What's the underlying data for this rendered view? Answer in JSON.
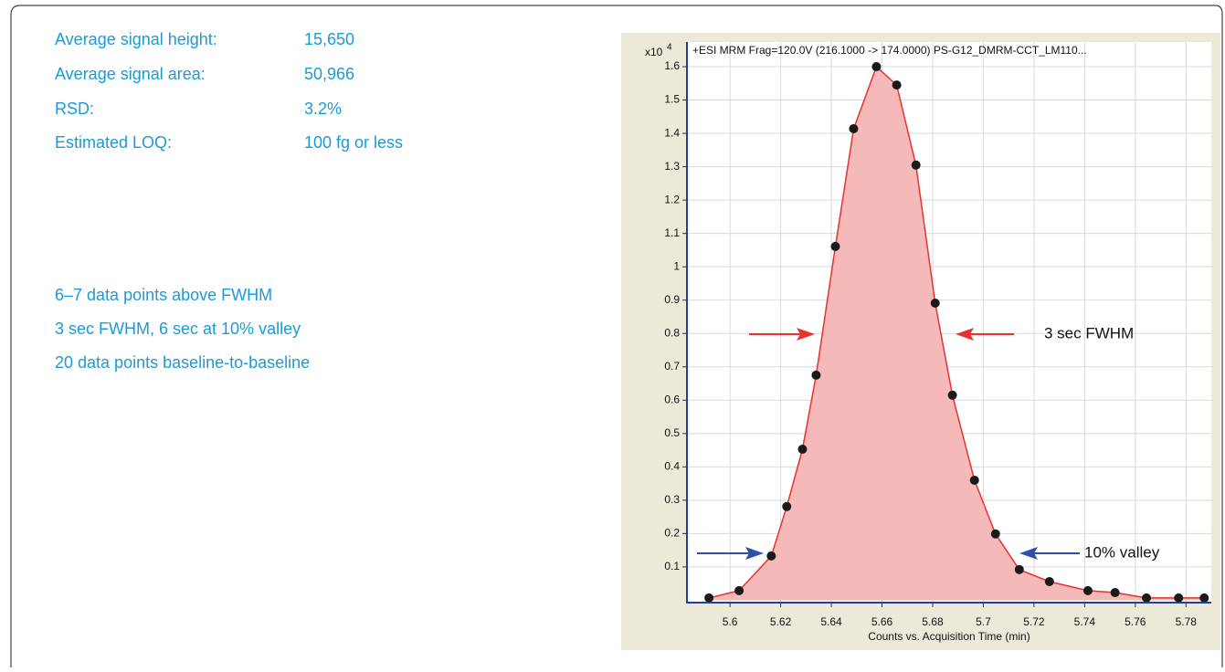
{
  "stats": [
    {
      "label": "Average signal height:",
      "value": "15,650"
    },
    {
      "label": "Average signal area:",
      "value": "50,966"
    },
    {
      "label": "RSD:",
      "value": "3.2%"
    },
    {
      "label": "Estimated LOQ:",
      "value": "100 fg or less"
    }
  ],
  "notes": [
    "6–7 data points above FWHM",
    "3 sec FWHM, 6 sec at 10% valley",
    "20 data points baseline-to-baseline"
  ],
  "chart_data": {
    "type": "line",
    "title": "+ESI  MRM  Frag=120.0V  (216.1000 -> 174.0000)  PS-G12_DMRM-CCT_LM110...",
    "y_scale": {
      "base": "x10",
      "exponent": "4"
    },
    "x_label": "Counts vs. Acquisition Time (min)",
    "annotations": [
      "3 sec FWHM",
      "10% valley"
    ],
    "x": [
      5.5917,
      5.6036,
      5.6163,
      5.6224,
      5.6286,
      5.634,
      5.6416,
      5.6488,
      5.6578,
      5.6658,
      5.6734,
      5.681,
      5.6878,
      5.6965,
      5.7048,
      5.7142,
      5.7261,
      5.7413,
      5.752,
      5.7644,
      5.7771,
      5.7872
    ],
    "values": [
      0.007,
      0.029,
      0.133,
      0.281,
      0.453,
      0.675,
      1.061,
      1.414,
      1.6,
      1.545,
      1.305,
      0.891,
      0.615,
      0.36,
      0.199,
      0.092,
      0.056,
      0.029,
      0.023,
      0.007,
      0.007,
      0.007
    ],
    "color": "#e8322f",
    "fill_color": "#f6b9b9",
    "marker_color": "#1a1a1a",
    "xlim": [
      5.583,
      5.79
    ],
    "ylim": [
      -0.007,
      1.674
    ],
    "xticks": [
      5.6,
      5.62,
      5.64,
      5.66,
      5.68,
      5.7,
      5.72,
      5.74,
      5.76,
      5.78
    ],
    "yticks": [
      0.1,
      0.2,
      0.3,
      0.4,
      0.5,
      0.6,
      0.7,
      0.8,
      0.9,
      1,
      1.1,
      1.2,
      1.3,
      1.4,
      1.5,
      1.6
    ],
    "grid": true
  }
}
